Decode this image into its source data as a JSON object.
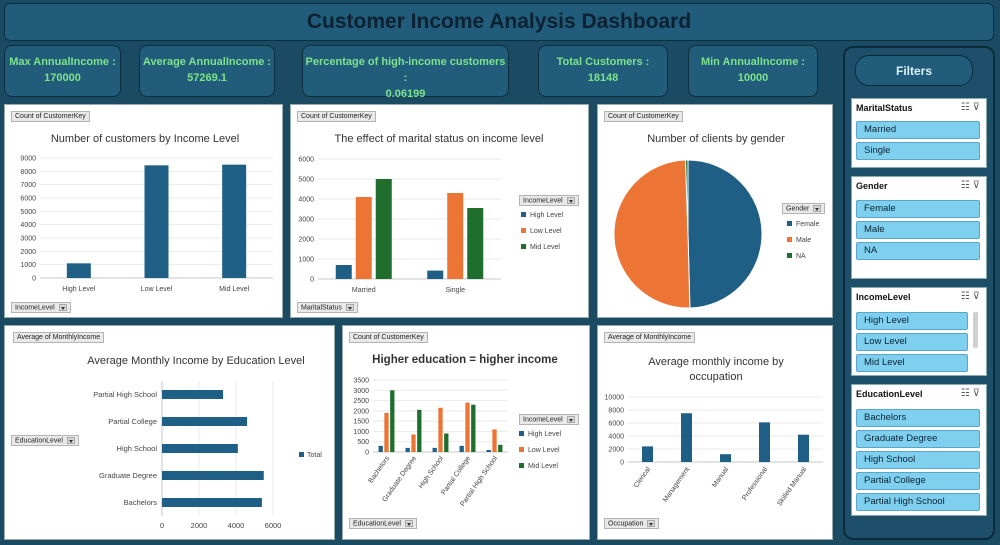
{
  "dashboard_title": "Customer Income Analysis Dashboard",
  "kpis": [
    {
      "label": "Max AnnualIncome :",
      "value": "170000"
    },
    {
      "label": "Average AnnualIncome :",
      "value": "57269.1"
    },
    {
      "label": "Percentage of high-income customers :",
      "value": "0.06199"
    },
    {
      "label": "Total Customers :",
      "value": "18148"
    },
    {
      "label": "Min AnnualIncome :",
      "value": "10000"
    }
  ],
  "filters_label": "Filters",
  "slicers": [
    {
      "title": "MaritalStatus",
      "items": [
        "Married",
        "Single"
      ]
    },
    {
      "title": "Gender",
      "items": [
        "Female",
        "Male",
        "NA"
      ]
    },
    {
      "title": "IncomeLevel",
      "items": [
        "High Level",
        "Low Level",
        "Mid Level"
      ]
    },
    {
      "title": "EducationLevel",
      "items": [
        "Bachelors",
        "Graduate Degree",
        "High School",
        "Partial College",
        "Partial High School"
      ]
    }
  ],
  "colors": {
    "blue": "#1f5f86",
    "orange": "#ec7434",
    "green": "#1f6e2d",
    "grid": "#e2e2e2"
  },
  "chart_data": [
    {
      "type": "bar",
      "value_field": "Count of CustomerKey",
      "row_field": "IncomeLevel",
      "title": "Number of customers by Income Level",
      "categories": [
        "High Level",
        "Low Level",
        "Mid Level"
      ],
      "values": [
        1100,
        8450,
        8500
      ],
      "ylim": [
        0,
        9000
      ],
      "yticks": [
        0,
        1000,
        2000,
        3000,
        4000,
        5000,
        6000,
        7000,
        8000,
        9000
      ]
    },
    {
      "type": "bar",
      "value_field": "Count of CustomerKey",
      "row_field": "MaritalStatus",
      "legend_field": "IncomeLevel",
      "title": "The effect of marital status on income level",
      "categories": [
        "Married",
        "Single"
      ],
      "series": [
        {
          "name": "High Level",
          "values": [
            700,
            420
          ]
        },
        {
          "name": "Low Level",
          "values": [
            4100,
            4300
          ]
        },
        {
          "name": "Mid Level",
          "values": [
            5000,
            3550
          ]
        }
      ],
      "ylim": [
        0,
        6000
      ],
      "yticks": [
        0,
        1000,
        2000,
        3000,
        4000,
        5000,
        6000
      ],
      "legend": "right"
    },
    {
      "type": "pie",
      "value_field": "Count of CustomerKey",
      "legend_field": "Gender",
      "title": "Number of clients by gender",
      "categories": [
        "Female",
        "Male",
        "NA"
      ],
      "values": [
        9000,
        9050,
        98
      ],
      "legend": "right"
    },
    {
      "type": "bar",
      "orientation": "horizontal",
      "value_field": "Average of MonthlyIncome",
      "row_field": "EducationLevel",
      "title": "Average Monthly Income by Education Level",
      "categories": [
        "Partial High School",
        "Partial College",
        "High School",
        "Graduate Degree",
        "Bachelors"
      ],
      "series": [
        {
          "name": "Total",
          "values": [
            3300,
            4600,
            4100,
            5500,
            5400
          ]
        }
      ],
      "xlim": [
        0,
        6000
      ],
      "xticks": [
        0,
        2000,
        4000,
        6000
      ],
      "legend": "right"
    },
    {
      "type": "bar",
      "value_field": "Count of CustomerKey",
      "row_field": "EducationLevel",
      "legend_field": "IncomeLevel",
      "title": "Higher education = higher income",
      "categories": [
        "Bachelors",
        "Graduate Degree",
        "High School",
        "Partial College",
        "Partial High School"
      ],
      "series": [
        {
          "name": "High Level",
          "values": [
            300,
            200,
            200,
            300,
            100
          ]
        },
        {
          "name": "Low Level",
          "values": [
            1900,
            850,
            2150,
            2400,
            1100
          ]
        },
        {
          "name": "Mid Level",
          "values": [
            3000,
            2050,
            900,
            2300,
            350
          ]
        }
      ],
      "ylim": [
        0,
        3500
      ],
      "yticks": [
        0,
        500,
        1000,
        1500,
        2000,
        2500,
        3000,
        3500
      ],
      "legend": "right"
    },
    {
      "type": "bar",
      "value_field": "Average of MonthlyIncome",
      "row_field": "Occupation",
      "title": "Average monthly income by occupation",
      "categories": [
        "Clerical",
        "Management",
        "Manual",
        "Professional",
        "Skilled Manual"
      ],
      "values": [
        2400,
        7500,
        1200,
        6100,
        4200
      ],
      "ylim": [
        0,
        10000
      ],
      "yticks": [
        0,
        2000,
        4000,
        6000,
        8000,
        10000
      ]
    }
  ]
}
